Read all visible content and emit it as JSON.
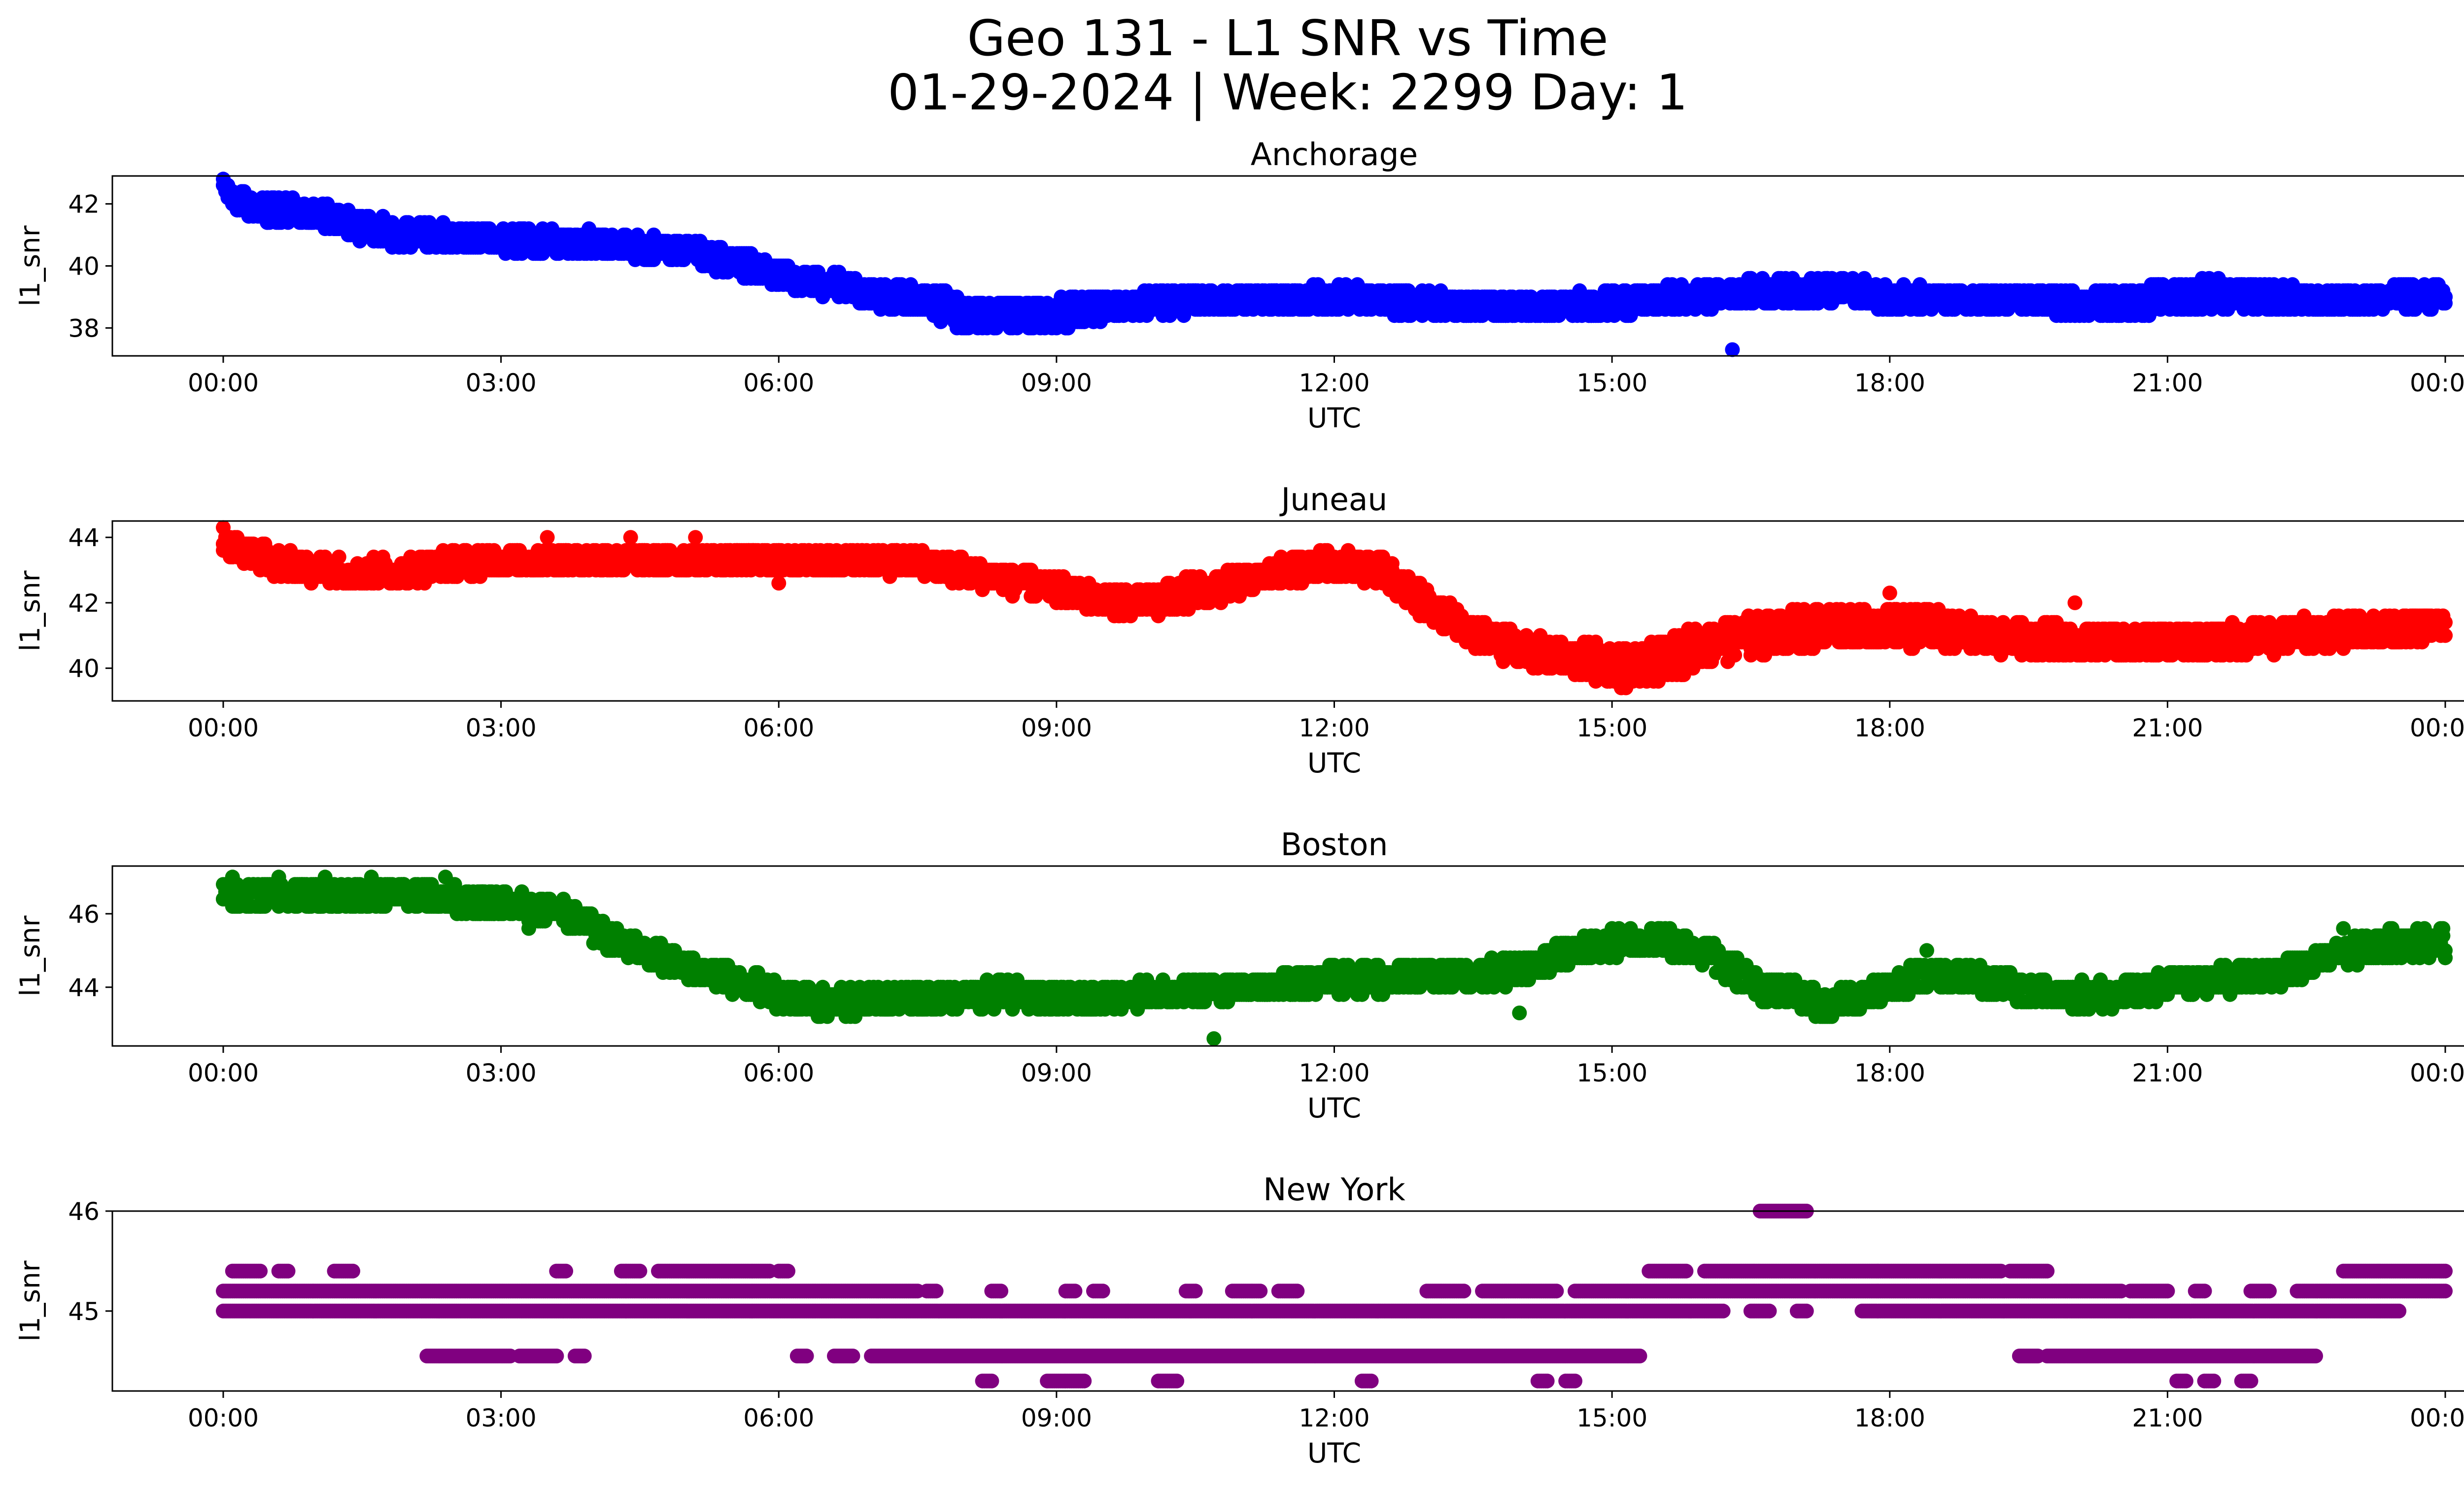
{
  "figure": {
    "title_line1": "Geo 131 - L1 SNR vs Time",
    "title_line2": "01-29-2024 | Week: 2299 Day: 1"
  },
  "chart_data": [
    {
      "type": "scatter",
      "title": "Anchorage",
      "xlabel": "UTC",
      "ylabel": "l1_snr",
      "color": "#0000ff",
      "xlim": [
        "00:00",
        "24:00"
      ],
      "ylim": [
        37.1,
        42.9
      ],
      "yticks": [
        38,
        40,
        42
      ],
      "xticks": [
        "00:00",
        "03:00",
        "06:00",
        "09:00",
        "12:00",
        "15:00",
        "18:00",
        "21:00",
        "00:00"
      ],
      "series": [
        {
          "x_hours": [
            0.0,
            0.05,
            0.1,
            0.2,
            0.3,
            0.5,
            0.8,
            1.0,
            1.3,
            1.6,
            2.0,
            2.5,
            3.0,
            3.5,
            4.0,
            4.5,
            5.0,
            5.5,
            5.8,
            6.0,
            6.3,
            6.7,
            7.0,
            7.5,
            7.8,
            8.0,
            8.3,
            8.6,
            9.0,
            9.3,
            9.6,
            10.0,
            10.5,
            11.0,
            11.5,
            12.0,
            12.5,
            13.0,
            13.5,
            14.0,
            14.5,
            15.0,
            15.5,
            16.0,
            16.3,
            16.5,
            17.0,
            17.5,
            18.0,
            18.5,
            19.0,
            19.5,
            20.0,
            20.5,
            21.0,
            21.5,
            22.0,
            22.5,
            23.0,
            23.5,
            24.0
          ],
          "y": [
            42.6,
            42.4,
            42.2,
            42.0,
            41.9,
            41.8,
            41.7,
            41.6,
            41.4,
            41.2,
            41.0,
            40.9,
            40.9,
            40.8,
            40.7,
            40.6,
            40.4,
            40.1,
            39.9,
            39.7,
            39.5,
            39.3,
            39.1,
            38.9,
            38.7,
            38.5,
            38.4,
            38.4,
            38.5,
            38.6,
            38.7,
            38.8,
            38.9,
            38.9,
            38.9,
            39.0,
            38.9,
            38.8,
            38.7,
            38.7,
            38.7,
            38.8,
            38.9,
            39.0,
            39.1,
            39.2,
            39.2,
            39.2,
            39.0,
            38.9,
            38.9,
            38.9,
            38.8,
            38.8,
            39.0,
            39.1,
            39.0,
            38.9,
            38.9,
            39.0,
            39.0
          ],
          "spread": [
            0.3,
            0.3,
            0.4,
            0.4,
            0.4,
            0.4,
            0.4,
            0.4,
            0.4,
            0.4,
            0.4,
            0.4,
            0.4,
            0.4,
            0.4,
            0.4,
            0.4,
            0.4,
            0.4,
            0.4,
            0.4,
            0.4,
            0.4,
            0.4,
            0.5,
            0.5,
            0.5,
            0.5,
            0.5,
            0.5,
            0.4,
            0.4,
            0.4,
            0.4,
            0.4,
            0.4,
            0.4,
            0.4,
            0.4,
            0.4,
            0.4,
            0.4,
            0.4,
            0.4,
            0.4,
            0.4,
            0.4,
            0.4,
            0.4,
            0.4,
            0.4,
            0.4,
            0.4,
            0.4,
            0.5,
            0.5,
            0.4,
            0.4,
            0.4,
            0.4,
            0.4
          ],
          "outliers": [
            [
              16.3,
              37.3
            ],
            [
              9.1,
              38.0
            ]
          ]
        }
      ]
    },
    {
      "type": "scatter",
      "title": "Juneau",
      "xlabel": "UTC",
      "ylabel": "l1_snr",
      "color": "#ff0000",
      "xlim": [
        "00:00",
        "24:00"
      ],
      "ylim": [
        39.0,
        44.5
      ],
      "yticks": [
        40,
        42,
        44
      ],
      "xticks": [
        "00:00",
        "03:00",
        "06:00",
        "09:00",
        "12:00",
        "15:00",
        "18:00",
        "21:00",
        "00:00"
      ],
      "series": [
        {
          "x_hours": [
            0.0,
            0.1,
            0.3,
            0.6,
            1.0,
            1.5,
            2.0,
            2.5,
            3.0,
            3.5,
            4.0,
            4.5,
            5.0,
            5.5,
            6.0,
            6.5,
            7.0,
            7.5,
            8.0,
            8.5,
            9.0,
            9.5,
            10.0,
            10.5,
            11.0,
            11.5,
            12.0,
            12.5,
            13.0,
            13.5,
            14.0,
            14.5,
            15.0,
            15.3,
            15.6,
            16.0,
            16.5,
            17.0,
            17.5,
            18.0,
            18.5,
            19.0,
            19.5,
            20.0,
            20.5,
            21.0,
            21.5,
            22.0,
            22.5,
            23.0,
            23.5,
            24.0
          ],
          "y": [
            43.8,
            43.7,
            43.5,
            43.2,
            43.0,
            42.9,
            43.0,
            43.2,
            43.3,
            43.3,
            43.3,
            43.3,
            43.3,
            43.3,
            43.3,
            43.3,
            43.3,
            43.2,
            43.0,
            42.7,
            42.4,
            42.1,
            42.0,
            42.3,
            42.6,
            43.0,
            43.2,
            43.0,
            42.0,
            41.0,
            40.6,
            40.3,
            40.1,
            40.0,
            40.3,
            40.7,
            41.0,
            41.2,
            41.3,
            41.3,
            41.2,
            41.0,
            40.9,
            40.8,
            40.8,
            40.8,
            40.8,
            40.9,
            41.1,
            41.2,
            41.2,
            41.3
          ],
          "spread": [
            0.4,
            0.4,
            0.4,
            0.4,
            0.4,
            0.4,
            0.4,
            0.4,
            0.4,
            0.4,
            0.4,
            0.4,
            0.4,
            0.4,
            0.4,
            0.4,
            0.4,
            0.4,
            0.4,
            0.4,
            0.4,
            0.4,
            0.5,
            0.5,
            0.4,
            0.4,
            0.4,
            0.4,
            0.5,
            0.5,
            0.5,
            0.5,
            0.6,
            0.6,
            0.6,
            0.6,
            0.6,
            0.6,
            0.6,
            0.6,
            0.6,
            0.5,
            0.5,
            0.5,
            0.5,
            0.5,
            0.5,
            0.5,
            0.5,
            0.5,
            0.5,
            0.5
          ],
          "outliers": [
            [
              0.0,
              44.3
            ],
            [
              3.5,
              44.0
            ],
            [
              4.4,
              44.0
            ],
            [
              5.1,
              44.0
            ],
            [
              6.0,
              42.6
            ],
            [
              18.0,
              42.3
            ],
            [
              20.0,
              42.0
            ]
          ]
        }
      ]
    },
    {
      "type": "scatter",
      "title": "Boston",
      "xlabel": "UTC",
      "ylabel": "l1_snr",
      "color": "#008000",
      "xlim": [
        "00:00",
        "24:00"
      ],
      "ylim": [
        42.4,
        47.3
      ],
      "yticks": [
        44,
        46
      ],
      "xticks": [
        "00:00",
        "03:00",
        "06:00",
        "09:00",
        "12:00",
        "15:00",
        "18:00",
        "21:00",
        "00:00"
      ],
      "series": [
        {
          "x_hours": [
            0.0,
            0.5,
            1.0,
            1.5,
            2.0,
            2.5,
            3.0,
            3.5,
            3.8,
            4.0,
            4.3,
            4.6,
            5.0,
            5.5,
            6.0,
            6.5,
            7.0,
            7.5,
            8.0,
            8.5,
            9.0,
            9.5,
            10.0,
            10.5,
            11.0,
            11.5,
            12.0,
            12.5,
            13.0,
            13.5,
            14.0,
            14.5,
            15.0,
            15.5,
            16.0,
            16.3,
            16.6,
            17.0,
            17.3,
            17.6,
            18.0,
            18.5,
            19.0,
            19.5,
            20.0,
            20.5,
            21.0,
            21.5,
            22.0,
            22.5,
            23.0,
            23.5,
            24.0
          ],
          "y": [
            46.5,
            46.5,
            46.5,
            46.5,
            46.5,
            46.4,
            46.3,
            46.1,
            45.9,
            45.6,
            45.2,
            44.9,
            44.6,
            44.2,
            43.8,
            43.6,
            43.6,
            43.7,
            43.8,
            43.8,
            43.7,
            43.7,
            43.8,
            43.9,
            44.0,
            44.1,
            44.2,
            44.2,
            44.3,
            44.3,
            44.5,
            44.9,
            45.2,
            45.3,
            45.0,
            44.5,
            44.0,
            43.8,
            43.5,
            43.7,
            44.0,
            44.4,
            44.2,
            43.9,
            43.8,
            43.8,
            44.0,
            44.2,
            44.3,
            44.6,
            45.0,
            45.2,
            45.2
          ],
          "spread": [
            0.35,
            0.35,
            0.35,
            0.35,
            0.35,
            0.35,
            0.35,
            0.35,
            0.35,
            0.35,
            0.35,
            0.35,
            0.35,
            0.35,
            0.35,
            0.35,
            0.35,
            0.35,
            0.35,
            0.35,
            0.35,
            0.35,
            0.35,
            0.35,
            0.35,
            0.35,
            0.35,
            0.35,
            0.35,
            0.35,
            0.35,
            0.35,
            0.35,
            0.35,
            0.35,
            0.35,
            0.35,
            0.35,
            0.35,
            0.35,
            0.35,
            0.35,
            0.35,
            0.35,
            0.35,
            0.35,
            0.35,
            0.35,
            0.35,
            0.35,
            0.35,
            0.35,
            0.35
          ],
          "outliers": [
            [
              0.1,
              47.0
            ],
            [
              0.6,
              47.0
            ],
            [
              1.1,
              47.0
            ],
            [
              1.6,
              47.0
            ],
            [
              2.4,
              47.0
            ],
            [
              10.7,
              42.6
            ],
            [
              14.0,
              43.3
            ],
            [
              18.4,
              45.0
            ],
            [
              22.9,
              45.6
            ],
            [
              3.3,
              45.6
            ]
          ]
        }
      ]
    },
    {
      "type": "scatter",
      "title": "New York",
      "xlabel": "UTC",
      "ylabel": "l1_snr",
      "color": "#800080",
      "xlim": [
        "00:00",
        "24:00"
      ],
      "ylim": [
        44.2,
        46.0
      ],
      "yticks": [
        45,
        46
      ],
      "xticks": [
        "00:00",
        "03:00",
        "06:00",
        "09:00",
        "12:00",
        "15:00",
        "18:00",
        "21:00",
        "00:00"
      ],
      "levels": [
        {
          "y": 44.3,
          "ranges": [
            [
              8.2,
              8.3
            ],
            [
              8.9,
              9.3
            ],
            [
              10.1,
              10.3
            ],
            [
              12.3,
              12.4
            ],
            [
              14.2,
              14.3
            ],
            [
              14.5,
              14.6
            ],
            [
              21.1,
              21.2
            ],
            [
              21.4,
              21.5
            ],
            [
              21.8,
              21.9
            ]
          ]
        },
        {
          "y": 44.55,
          "ranges": [
            [
              2.2,
              3.1
            ],
            [
              3.2,
              3.6
            ],
            [
              3.8,
              3.9
            ],
            [
              6.2,
              6.3
            ],
            [
              6.6,
              6.8
            ],
            [
              7.0,
              15.3
            ],
            [
              19.4,
              19.6
            ],
            [
              19.7,
              22.6
            ]
          ]
        },
        {
          "y": 45.0,
          "ranges": [
            [
              0.0,
              16.2
            ],
            [
              16.5,
              16.7
            ],
            [
              17.0,
              17.1
            ],
            [
              17.7,
              23.5
            ]
          ]
        },
        {
          "y": 45.2,
          "ranges": [
            [
              0.0,
              7.5
            ],
            [
              7.6,
              7.7
            ],
            [
              8.3,
              8.4
            ],
            [
              9.1,
              9.2
            ],
            [
              9.4,
              9.5
            ],
            [
              10.4,
              10.5
            ],
            [
              10.9,
              11.2
            ],
            [
              11.4,
              11.6
            ],
            [
              13.0,
              13.4
            ],
            [
              13.6,
              14.4
            ],
            [
              14.6,
              20.5
            ],
            [
              20.6,
              21.0
            ],
            [
              21.3,
              21.4
            ],
            [
              21.9,
              22.1
            ],
            [
              22.4,
              24.0
            ]
          ]
        },
        {
          "y": 45.4,
          "ranges": [
            [
              0.1,
              0.4
            ],
            [
              0.6,
              0.7
            ],
            [
              1.2,
              1.4
            ],
            [
              3.6,
              3.7
            ],
            [
              4.3,
              4.5
            ],
            [
              4.7,
              5.9
            ],
            [
              6.0,
              6.1
            ],
            [
              15.4,
              15.8
            ],
            [
              16.0,
              19.2
            ],
            [
              19.3,
              19.7
            ],
            [
              22.9,
              24.0
            ]
          ]
        },
        {
          "y": 46.0,
          "ranges": [
            [
              16.6,
              17.1
            ]
          ]
        }
      ]
    }
  ]
}
